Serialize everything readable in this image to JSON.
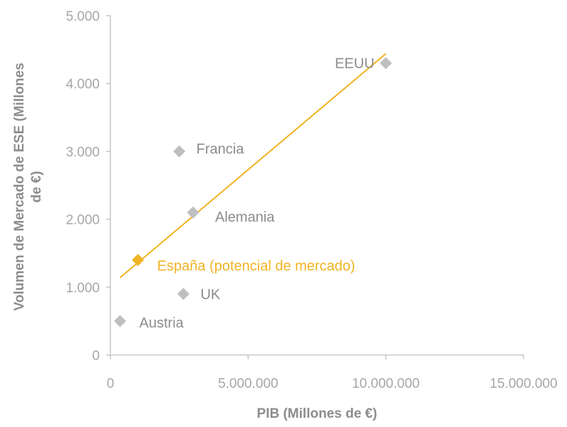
{
  "chart_data": {
    "type": "scatter",
    "xlabel": "PIB (Millones de €)",
    "ylabel_lines": [
      "Volumen de Mercado de ESE (Millones",
      "de €)"
    ],
    "x_ticks": [
      "0",
      "5.000.000",
      "10.000.000",
      "15.000.000"
    ],
    "y_ticks": [
      "0",
      "1.000",
      "2.000",
      "3.000",
      "4.000",
      "5.000"
    ],
    "xlim": [
      0,
      15000000
    ],
    "ylim": [
      0,
      5000
    ],
    "grid": false,
    "points": [
      {
        "label": "EEUU",
        "x": 10000000,
        "y": 4300,
        "color": "#bfbfbf"
      },
      {
        "label": "Francia",
        "x": 2500000,
        "y": 3000,
        "color": "#bfbfbf"
      },
      {
        "label": "Alemania",
        "x": 3000000,
        "y": 2100,
        "color": "#bfbfbf"
      },
      {
        "label": "España (potencial de mercado)",
        "x": 1000000,
        "y": 1400,
        "color": "#f0b323"
      },
      {
        "label": "UK",
        "x": 2650000,
        "y": 900,
        "color": "#bfbfbf"
      },
      {
        "label": "Austria",
        "x": 350000,
        "y": 500,
        "color": "#bfbfbf"
      }
    ],
    "trendline": {
      "color": "#f0b323",
      "from": {
        "x": 350000,
        "y": 1140
      },
      "to": {
        "x": 10000000,
        "y": 4440
      }
    }
  }
}
